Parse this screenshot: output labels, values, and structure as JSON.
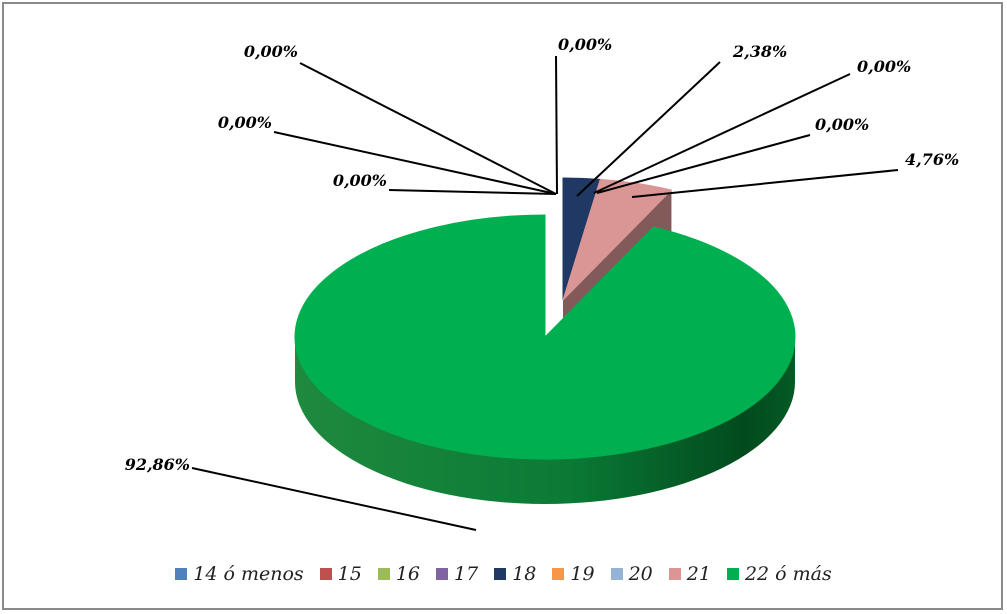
{
  "chart_data": {
    "type": "pie",
    "title": "",
    "three_d": true,
    "legend_position": "bottom",
    "categories": [
      "14 ó menos",
      "15",
      "16",
      "17",
      "18",
      "19",
      "20",
      "21",
      "22 ó más"
    ],
    "values": [
      0.0,
      0.0,
      0.0,
      0.0,
      2.38,
      0.0,
      0.0,
      4.76,
      92.86
    ],
    "labels": [
      "0,00%",
      "0,00%",
      "0,00%",
      "0,00%",
      "2,38%",
      "0,00%",
      "0,00%",
      "4,76%",
      "92,86%"
    ],
    "colors": [
      "#4f81bd",
      "#c0504d",
      "#9bbb59",
      "#8064a2",
      "#1f3864",
      "#f79646",
      "#95b3d7",
      "#d99694",
      "#00b050"
    ],
    "exploded_category": "22 ó más"
  }
}
